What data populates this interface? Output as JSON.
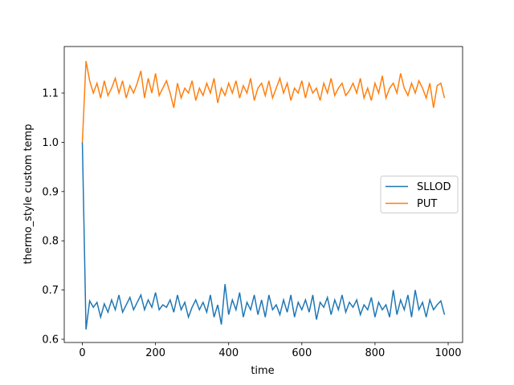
{
  "chart_data": {
    "type": "line",
    "xlabel": "time",
    "ylabel": "thermo_style custom temp",
    "x": [
      0,
      10,
      20,
      30,
      40,
      50,
      60,
      70,
      80,
      90,
      100,
      110,
      120,
      130,
      140,
      150,
      160,
      170,
      180,
      190,
      200,
      210,
      220,
      230,
      240,
      250,
      260,
      270,
      280,
      290,
      300,
      310,
      320,
      330,
      340,
      350,
      360,
      370,
      380,
      390,
      400,
      410,
      420,
      430,
      440,
      450,
      460,
      470,
      480,
      490,
      500,
      510,
      520,
      530,
      540,
      550,
      560,
      570,
      580,
      590,
      600,
      610,
      620,
      630,
      640,
      650,
      660,
      670,
      680,
      690,
      700,
      710,
      720,
      730,
      740,
      750,
      760,
      770,
      780,
      790,
      800,
      810,
      820,
      830,
      840,
      850,
      860,
      870,
      880,
      890,
      900,
      910,
      920,
      930,
      940,
      950,
      960,
      970,
      980,
      990
    ],
    "series": [
      {
        "name": "SLLOD",
        "color": "#1f77b4",
        "values": [
          1.0,
          0.62,
          0.678,
          0.665,
          0.675,
          0.645,
          0.672,
          0.655,
          0.68,
          0.66,
          0.69,
          0.655,
          0.67,
          0.685,
          0.66,
          0.675,
          0.69,
          0.66,
          0.68,
          0.665,
          0.695,
          0.66,
          0.67,
          0.665,
          0.68,
          0.655,
          0.69,
          0.66,
          0.675,
          0.645,
          0.665,
          0.68,
          0.66,
          0.675,
          0.655,
          0.69,
          0.645,
          0.67,
          0.63,
          0.712,
          0.65,
          0.68,
          0.66,
          0.695,
          0.645,
          0.675,
          0.66,
          0.69,
          0.65,
          0.68,
          0.645,
          0.69,
          0.66,
          0.67,
          0.65,
          0.68,
          0.655,
          0.69,
          0.645,
          0.675,
          0.66,
          0.68,
          0.655,
          0.69,
          0.64,
          0.675,
          0.665,
          0.685,
          0.65,
          0.68,
          0.66,
          0.69,
          0.655,
          0.675,
          0.665,
          0.68,
          0.65,
          0.67,
          0.66,
          0.685,
          0.645,
          0.675,
          0.66,
          0.67,
          0.645,
          0.7,
          0.65,
          0.68,
          0.66,
          0.69,
          0.645,
          0.7,
          0.66,
          0.675,
          0.645,
          0.68,
          0.66,
          0.67,
          0.678,
          0.65
        ]
      },
      {
        "name": "PUT",
        "color": "#ff7f0e",
        "values": [
          1.0,
          1.165,
          1.125,
          1.1,
          1.12,
          1.09,
          1.125,
          1.095,
          1.11,
          1.13,
          1.1,
          1.125,
          1.09,
          1.115,
          1.1,
          1.12,
          1.145,
          1.09,
          1.13,
          1.1,
          1.14,
          1.095,
          1.11,
          1.125,
          1.1,
          1.07,
          1.12,
          1.09,
          1.11,
          1.1,
          1.125,
          1.085,
          1.11,
          1.095,
          1.12,
          1.1,
          1.13,
          1.08,
          1.11,
          1.095,
          1.12,
          1.1,
          1.125,
          1.09,
          1.115,
          1.1,
          1.13,
          1.085,
          1.11,
          1.12,
          1.095,
          1.125,
          1.09,
          1.11,
          1.13,
          1.1,
          1.12,
          1.085,
          1.11,
          1.1,
          1.125,
          1.09,
          1.12,
          1.1,
          1.11,
          1.085,
          1.12,
          1.1,
          1.13,
          1.095,
          1.11,
          1.12,
          1.095,
          1.105,
          1.12,
          1.1,
          1.13,
          1.09,
          1.11,
          1.085,
          1.12,
          1.1,
          1.135,
          1.09,
          1.11,
          1.12,
          1.1,
          1.14,
          1.11,
          1.095,
          1.12,
          1.1,
          1.125,
          1.11,
          1.09,
          1.12,
          1.07,
          1.115,
          1.12,
          1.09
        ]
      }
    ],
    "xlim": [
      -49.5,
      1039.5
    ],
    "ylim": [
      0.5935,
      1.1945
    ],
    "xticks": [
      0,
      200,
      400,
      600,
      800,
      1000
    ],
    "yticks": [
      0.6,
      0.7,
      0.8,
      0.9,
      {
        "value": 1,
        "label": "1.0"
      },
      1.1
    ],
    "legend": "center right"
  }
}
